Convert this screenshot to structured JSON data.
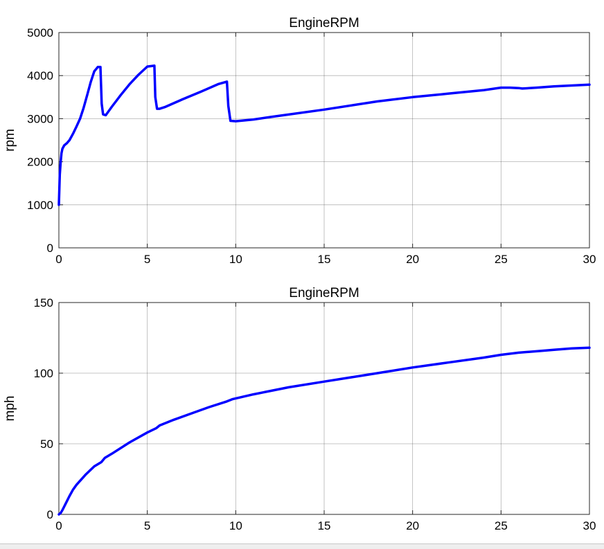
{
  "chart_data": [
    {
      "type": "line",
      "title": "EngineRPM",
      "xlabel": "",
      "ylabel": "rpm",
      "xlim": [
        0,
        30
      ],
      "ylim": [
        0,
        5000
      ],
      "xticks": [
        0,
        5,
        10,
        15,
        20,
        25,
        30
      ],
      "yticks": [
        0,
        1000,
        2000,
        3000,
        4000,
        5000
      ],
      "grid": true,
      "line_color": "#0000ff",
      "series": [
        {
          "x": [
            0,
            0.05,
            0.1,
            0.15,
            0.2,
            0.3,
            0.45,
            0.6,
            0.8,
            1.0,
            1.2,
            1.4,
            1.6,
            1.8,
            2.0,
            2.2,
            2.35,
            2.42,
            2.5,
            2.65,
            3.0,
            3.5,
            4.0,
            4.5,
            5.0,
            5.4,
            5.45,
            5.55,
            5.7,
            6.0,
            7.0,
            8.0,
            9.0,
            9.5,
            9.58,
            9.7,
            10.0,
            11.0,
            12.0,
            15.0,
            18.0,
            20.0,
            22.0,
            24.0,
            25.0,
            25.5,
            26.0,
            26.2,
            27.0,
            28.0,
            29.0,
            30.0
          ],
          "values": [
            1000,
            1700,
            2000,
            2200,
            2300,
            2380,
            2430,
            2500,
            2650,
            2820,
            3000,
            3250,
            3550,
            3850,
            4100,
            4200,
            4200,
            3350,
            3100,
            3080,
            3280,
            3550,
            3800,
            4020,
            4210,
            4230,
            3500,
            3230,
            3230,
            3270,
            3450,
            3620,
            3800,
            3860,
            3300,
            2950,
            2940,
            2980,
            3040,
            3210,
            3400,
            3500,
            3580,
            3660,
            3720,
            3720,
            3710,
            3700,
            3720,
            3750,
            3770,
            3790
          ]
        }
      ]
    },
    {
      "type": "line",
      "title": "EngineRPM",
      "xlabel": "",
      "ylabel": "mph",
      "xlim": [
        0,
        30
      ],
      "ylim": [
        0,
        150
      ],
      "xticks": [
        0,
        5,
        10,
        15,
        20,
        25,
        30
      ],
      "yticks": [
        0,
        50,
        100,
        150
      ],
      "grid": true,
      "line_color": "#0000ff",
      "series": [
        {
          "x": [
            0,
            0.1,
            0.2,
            0.4,
            0.6,
            0.8,
            1.0,
            1.5,
            2.0,
            2.4,
            2.6,
            3.0,
            4.0,
            5.0,
            5.5,
            5.7,
            6.5,
            7.5,
            8.5,
            9.5,
            9.8,
            11.0,
            13.0,
            15.0,
            17.0,
            18.5,
            20.0,
            22.0,
            24.0,
            25.0,
            26.0,
            27.0,
            28.0,
            29.0,
            30.0
          ],
          "values": [
            0,
            1.0,
            3.0,
            8.0,
            13.0,
            17.5,
            21.0,
            28.0,
            34.0,
            37.0,
            40.0,
            43.0,
            51.0,
            58.0,
            61.0,
            63.0,
            67.0,
            71.5,
            76.0,
            80.0,
            81.5,
            85.0,
            90.0,
            94.0,
            98.0,
            101.0,
            104.0,
            107.5,
            111.0,
            113.0,
            114.5,
            115.5,
            116.5,
            117.5,
            118.0
          ]
        }
      ]
    }
  ]
}
